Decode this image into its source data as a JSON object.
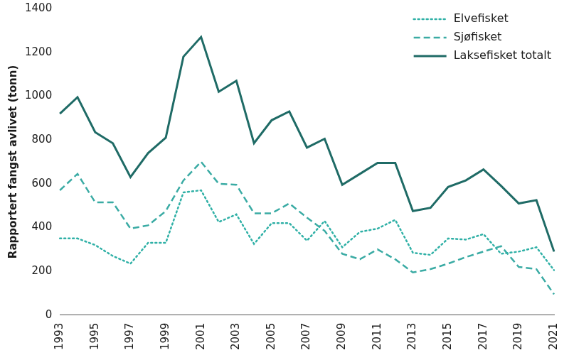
{
  "chart_data": {
    "type": "line",
    "y_label": "Rapportert fangst avlivet (tonn)",
    "categories": [
      "1993",
      null,
      "1995",
      null,
      "1997",
      null,
      "1999",
      null,
      "2001",
      null,
      "2003",
      null,
      "2005",
      null,
      "2007",
      null,
      "2009",
      null,
      "2011",
      null,
      "2013",
      null,
      "2015",
      null,
      "2017",
      null,
      "2019",
      null,
      "2021"
    ],
    "series": [
      {
        "name": "Elvefisket",
        "color": "#2fb0a6",
        "line_style": "dotted",
        "values": [
          350,
          350,
          320,
          270,
          235,
          330,
          330,
          560,
          570,
          425,
          460,
          325,
          420,
          420,
          340,
          430,
          310,
          380,
          395,
          435,
          285,
          275,
          350,
          345,
          370,
          280,
          290,
          310,
          205
        ]
      },
      {
        "name": "Sjøfisket",
        "color": "#3aaba4",
        "line_style": "dashed",
        "values": [
          570,
          645,
          515,
          515,
          395,
          410,
          475,
          615,
          700,
          600,
          595,
          465,
          465,
          510,
          445,
          385,
          280,
          255,
          300,
          255,
          195,
          210,
          235,
          265,
          290,
          315,
          220,
          210,
          95
        ]
      },
      {
        "name": "Laksefisket totalt",
        "color": "#1f6b66",
        "line_style": "solid",
        "values": [
          920,
          995,
          835,
          785,
          630,
          740,
          810,
          1180,
          1270,
          1020,
          1070,
          785,
          890,
          930,
          765,
          805,
          595,
          645,
          695,
          695,
          475,
          490,
          585,
          615,
          665,
          590,
          510,
          525,
          290
        ]
      }
    ],
    "ylim": [
      0,
      1400
    ],
    "yticks": [
      0,
      200,
      400,
      600,
      800,
      1000,
      1200,
      1400
    ],
    "grid": false,
    "legend": "top-right"
  }
}
